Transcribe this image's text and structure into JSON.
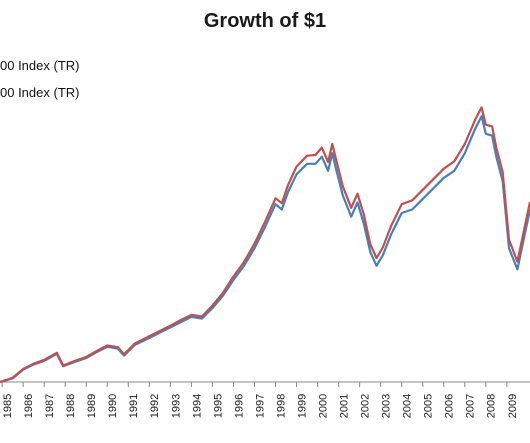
{
  "chart_data": {
    "type": "line",
    "title": "Growth of $1",
    "xlabel": "",
    "ylabel": "",
    "legend": {
      "placement": "top-left",
      "entries": [
        "00 Index (TR)",
        "00 Index (TR)"
      ]
    },
    "grid": false,
    "x_ticks": [
      "1985",
      "1986",
      "1987",
      "1988",
      "1989",
      "1990",
      "1991",
      "1992",
      "1993",
      "1994",
      "1995",
      "1996",
      "1997",
      "1998",
      "1999",
      "2000",
      "2001",
      "2002",
      "2003",
      "2004",
      "2005",
      "2006",
      "2007",
      "2008",
      "2009"
    ],
    "x_range": [
      1984.9,
      2010.1
    ],
    "y_range": [
      0,
      1.0
    ],
    "series": [
      {
        "color": "#4a7ebb",
        "x": [
          1984.9,
          1985.5,
          1986.0,
          1986.5,
          1987.0,
          1987.6,
          1987.9,
          1988.5,
          1989.0,
          1989.5,
          1990.0,
          1990.5,
          1990.8,
          1991.3,
          1992.0,
          1992.5,
          1993.0,
          1993.5,
          1994.0,
          1994.5,
          1995.0,
          1995.5,
          1996.0,
          1996.5,
          1997.0,
          1997.5,
          1998.0,
          1998.3,
          1998.6,
          1999.0,
          1999.5,
          1999.9,
          2000.2,
          2000.5,
          2000.7,
          2000.9,
          2001.2,
          2001.6,
          2001.9,
          2002.2,
          2002.5,
          2002.8,
          2003.1,
          2003.5,
          2004.0,
          2004.5,
          2005.0,
          2005.5,
          2006.0,
          2006.5,
          2007.0,
          2007.5,
          2007.8,
          2008.0,
          2008.3,
          2008.5,
          2008.8,
          2009.1,
          2009.5,
          2010.1
        ],
        "y": [
          0.0,
          0.01,
          0.035,
          0.05,
          0.06,
          0.08,
          0.045,
          0.058,
          0.068,
          0.085,
          0.1,
          0.095,
          0.075,
          0.105,
          0.125,
          0.14,
          0.155,
          0.17,
          0.185,
          0.18,
          0.21,
          0.245,
          0.29,
          0.33,
          0.38,
          0.44,
          0.505,
          0.49,
          0.54,
          0.59,
          0.62,
          0.62,
          0.64,
          0.6,
          0.65,
          0.6,
          0.53,
          0.47,
          0.51,
          0.45,
          0.37,
          0.33,
          0.36,
          0.42,
          0.48,
          0.49,
          0.52,
          0.55,
          0.58,
          0.6,
          0.65,
          0.72,
          0.755,
          0.705,
          0.7,
          0.64,
          0.57,
          0.38,
          0.32,
          0.49
        ]
      },
      {
        "color": "#c0504d",
        "x": [
          1984.9,
          1985.5,
          1986.0,
          1986.5,
          1987.0,
          1987.6,
          1987.9,
          1988.5,
          1989.0,
          1989.5,
          1990.0,
          1990.5,
          1990.8,
          1991.3,
          1992.0,
          1992.5,
          1993.0,
          1993.5,
          1994.0,
          1994.5,
          1995.0,
          1995.5,
          1996.0,
          1996.5,
          1997.0,
          1997.5,
          1998.0,
          1998.3,
          1998.6,
          1999.0,
          1999.5,
          1999.9,
          2000.2,
          2000.5,
          2000.7,
          2000.9,
          2001.2,
          2001.6,
          2001.9,
          2002.2,
          2002.5,
          2002.8,
          2003.1,
          2003.5,
          2004.0,
          2004.5,
          2005.0,
          2005.5,
          2006.0,
          2006.5,
          2007.0,
          2007.5,
          2007.8,
          2008.0,
          2008.3,
          2008.5,
          2008.8,
          2009.1,
          2009.5,
          2010.1
        ],
        "y": [
          0.0,
          0.012,
          0.037,
          0.052,
          0.063,
          0.083,
          0.047,
          0.061,
          0.071,
          0.088,
          0.104,
          0.099,
          0.079,
          0.109,
          0.13,
          0.145,
          0.16,
          0.176,
          0.191,
          0.186,
          0.217,
          0.253,
          0.3,
          0.341,
          0.393,
          0.455,
          0.522,
          0.508,
          0.56,
          0.612,
          0.643,
          0.645,
          0.666,
          0.625,
          0.676,
          0.627,
          0.556,
          0.495,
          0.535,
          0.476,
          0.392,
          0.352,
          0.382,
          0.444,
          0.505,
          0.516,
          0.546,
          0.576,
          0.606,
          0.627,
          0.676,
          0.746,
          0.78,
          0.731,
          0.726,
          0.666,
          0.596,
          0.404,
          0.342,
          0.512
        ]
      }
    ]
  }
}
